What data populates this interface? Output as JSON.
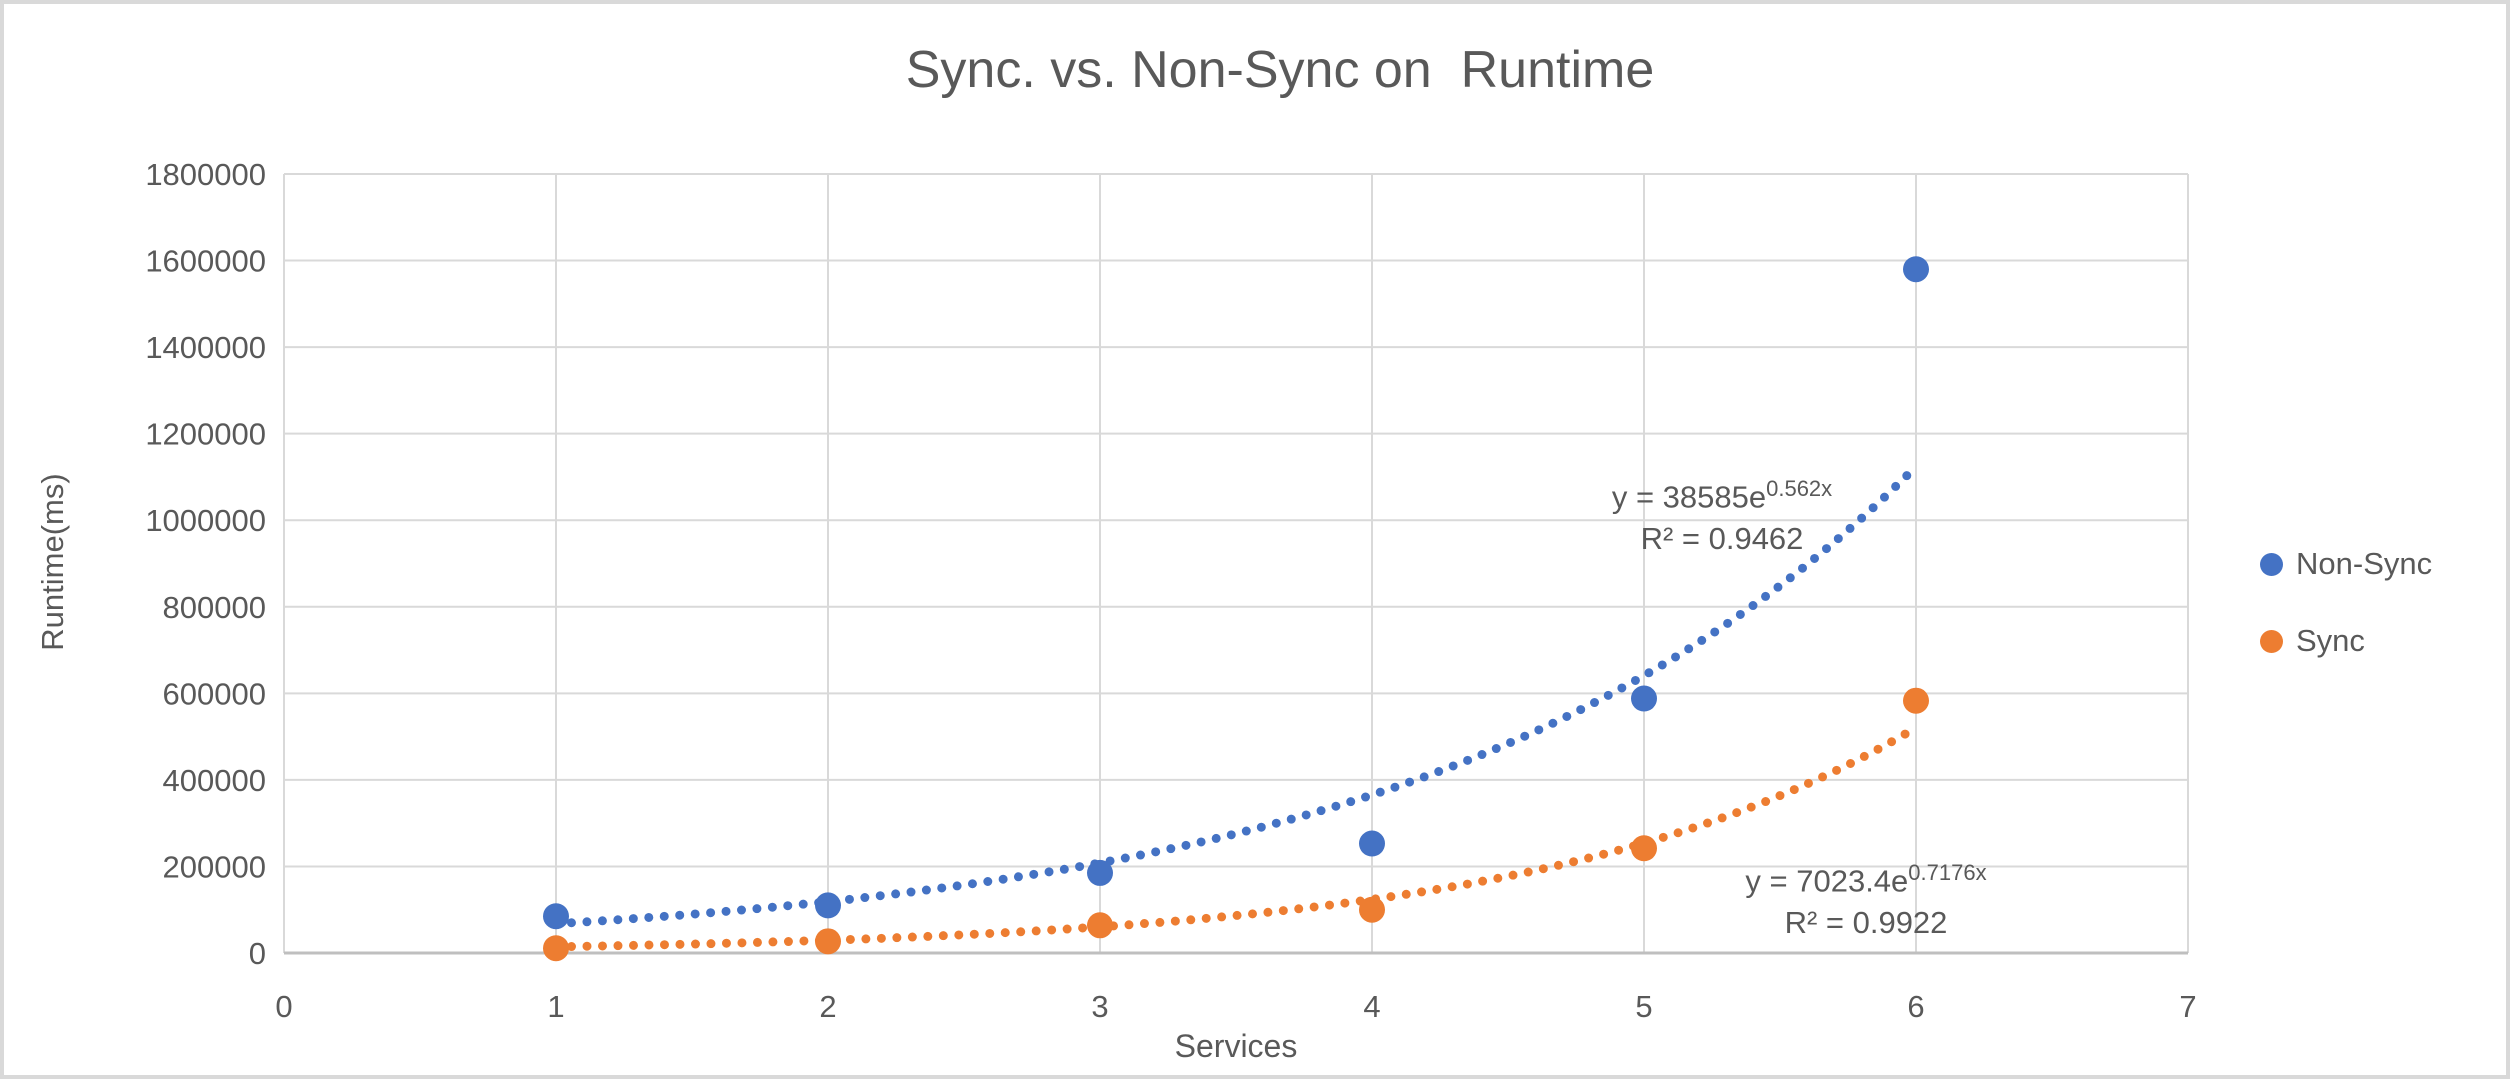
{
  "frame": {
    "background_color": "#ffffff",
    "border_color": "#d9d9d9"
  },
  "title": "Sync. vs. Non-Sync on  Runtime",
  "axes": {
    "x_title": "Services",
    "y_title": "Runtime(ms)"
  },
  "legend": {
    "position": "right",
    "items": [
      {
        "label": "Non-Sync",
        "color": "#4472C4"
      },
      {
        "label": "Sync",
        "color": "#ED7D31"
      }
    ]
  },
  "colors": {
    "non_sync": "#4472C4",
    "sync": "#ED7D31",
    "gridline": "#d9d9d9",
    "axis_line": "#bfbfbf",
    "text": "#595959"
  },
  "chart_data": {
    "type": "scatter",
    "title": "Sync. vs. Non-Sync on  Runtime",
    "xlabel": "Services",
    "ylabel": "Runtime(ms)",
    "xlim": [
      0,
      7
    ],
    "ylim": [
      0,
      1800000
    ],
    "x_ticks": [
      0,
      1,
      2,
      3,
      4,
      5,
      6,
      7
    ],
    "y_ticks": [
      0,
      200000,
      400000,
      600000,
      800000,
      1000000,
      1200000,
      1400000,
      1600000,
      1800000
    ],
    "grid": true,
    "legend_position": "right",
    "series": [
      {
        "name": "Non-Sync",
        "color": "#4472C4",
        "x": [
          1,
          2,
          3,
          4,
          5,
          6
        ],
        "y": [
          85000,
          110000,
          185000,
          253000,
          588000,
          1580000
        ],
        "trendline": {
          "type": "exponential",
          "a": 38585,
          "b": 0.562,
          "x_range": [
            1,
            6
          ],
          "equation_base": "y = 38585e",
          "equation_exponent": "0.562x",
          "r_squared": "R² = 0.9462"
        }
      },
      {
        "name": "Sync",
        "color": "#ED7D31",
        "x": [
          1,
          2,
          3,
          4,
          5,
          6
        ],
        "y": [
          11000,
          27000,
          64000,
          100000,
          242000,
          583000
        ],
        "trendline": {
          "type": "exponential",
          "a": 7023.4,
          "b": 0.7176,
          "x_range": [
            1,
            6
          ],
          "equation_base": "y = 7023.4e",
          "equation_exponent": "0.7176x",
          "r_squared": "R² = 0.9922"
        }
      }
    ]
  }
}
